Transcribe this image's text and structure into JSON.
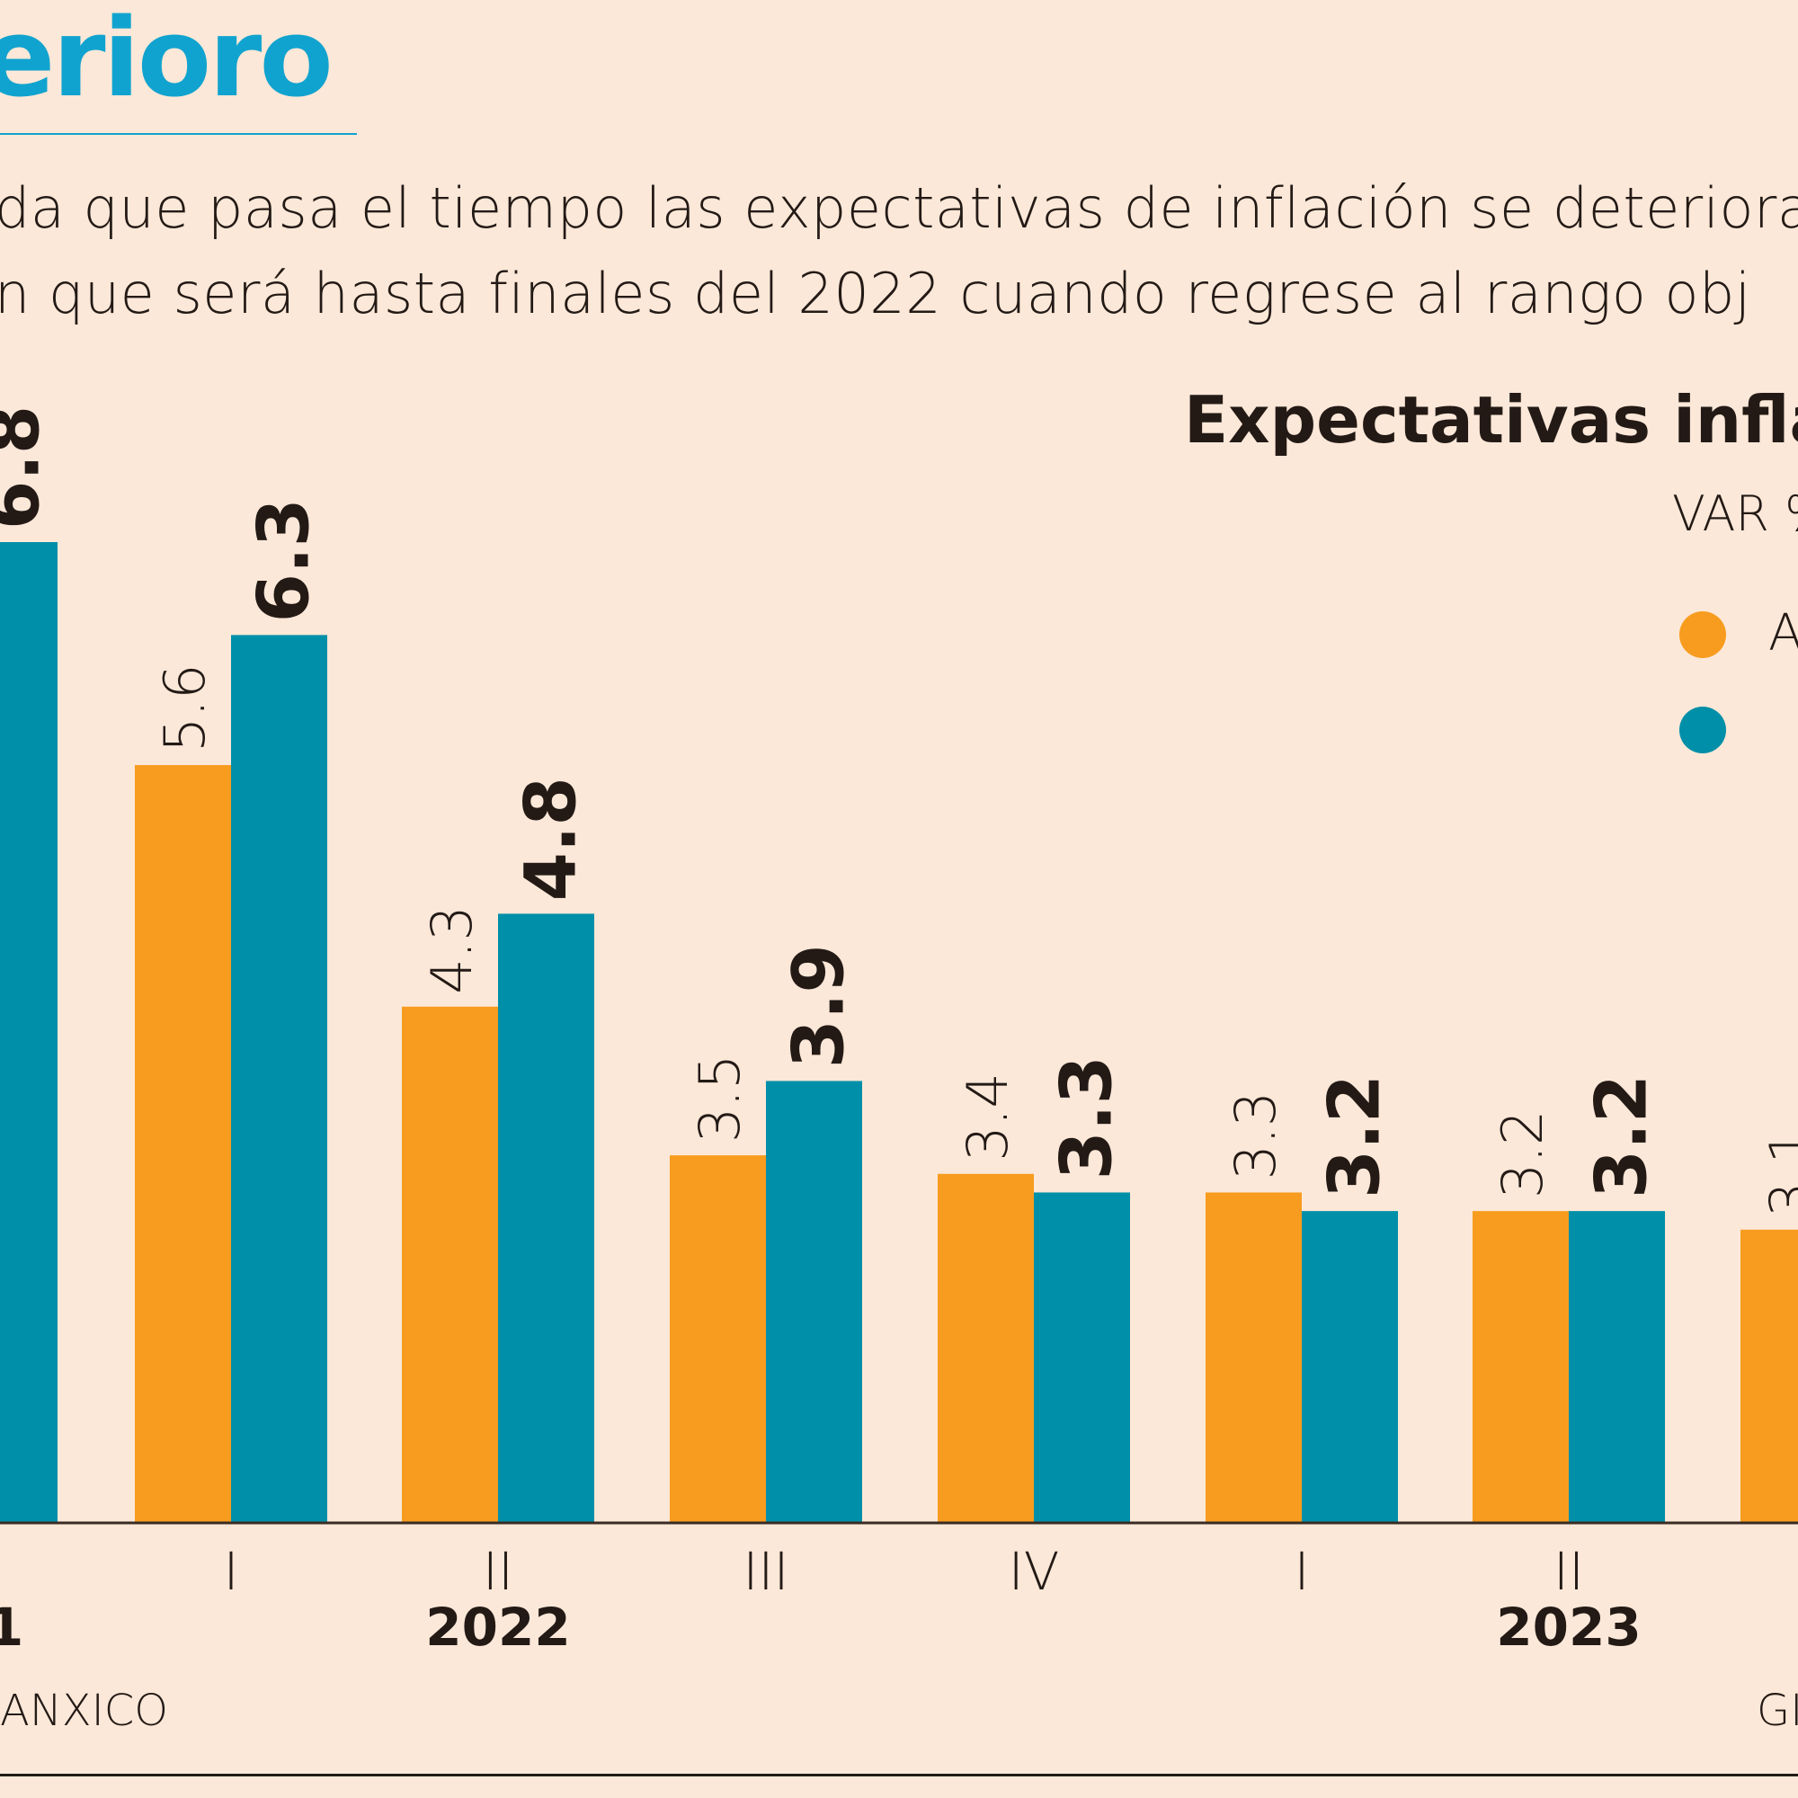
{
  "header": {
    "headline": "erioro",
    "subtitle_lines": [
      "da que pasa el tiempo las expectativas de inflación se deteriora",
      "n que será hasta finales del 2022 cuando regrese al rango obj"
    ]
  },
  "colors": {
    "background": "#fce8d8",
    "accent": "#11a3cf",
    "series_a": "#f79c1f",
    "series_b": "#008fa8",
    "text": "#231a16"
  },
  "legend": {
    "items": [
      {
        "label": "A",
        "color": "#f79c1f"
      },
      {
        "label": "",
        "color": "#008fa8"
      }
    ]
  },
  "footer": {
    "source": "ANXICO",
    "credit": "GI"
  },
  "chart_data": {
    "type": "bar",
    "title": "Expectativas infla",
    "units": "VAR %",
    "categories": [
      "",
      "I",
      "II",
      "III",
      "IV",
      "I",
      "II",
      ""
    ],
    "year_labels": [
      {
        "label": "1",
        "under_category_index": 0
      },
      {
        "label": "2022",
        "under_category_index": 2
      },
      {
        "label": "2023",
        "under_category_index": 6
      }
    ],
    "series": [
      {
        "name": "A",
        "color": "#f79c1f",
        "values": [
          null,
          5.6,
          4.3,
          3.5,
          3.4,
          3.3,
          3.2,
          3.1
        ],
        "label_style": "light"
      },
      {
        "name": "",
        "color": "#008fa8",
        "values": [
          6.8,
          6.3,
          4.8,
          3.9,
          3.3,
          3.2,
          3.2,
          null
        ],
        "label_style": "bold"
      }
    ],
    "xlabel": "",
    "ylabel": "",
    "grid": false,
    "legend_position": "top-right"
  }
}
